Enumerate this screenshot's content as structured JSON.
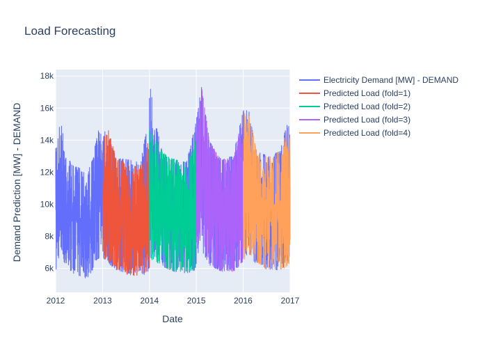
{
  "chart_data": {
    "type": "line",
    "title": "Load Forecasting",
    "xlabel": "Date",
    "ylabel": "Demand Prediction [MW] - DEMAND",
    "xlim": [
      "2012-01-01",
      "2017-01-01"
    ],
    "ylim": [
      4500,
      18400
    ],
    "x_ticks": [
      "2012",
      "2013",
      "2014",
      "2015",
      "2016",
      "2017"
    ],
    "y_ticks": [
      {
        "value": 6000,
        "label": "6k"
      },
      {
        "value": 8000,
        "label": "8k"
      },
      {
        "value": 10000,
        "label": "10k"
      },
      {
        "value": 12000,
        "label": "12k"
      },
      {
        "value": 14000,
        "label": "14k"
      },
      {
        "value": 16000,
        "label": "16k"
      },
      {
        "value": 18000,
        "label": "18k"
      }
    ],
    "grid": true,
    "legend_position": "right",
    "plot_background": "#e5ecf6",
    "series": [
      {
        "name": "Electricity Demand [MW] - DEMAND",
        "color": "#636efa",
        "start": "2012-01-01",
        "end": "2017-01-01",
        "envelope": {
          "dates": [
            "2012-01-01",
            "2012-01-20",
            "2012-02-15",
            "2012-03-15",
            "2012-04-15",
            "2012-05-15",
            "2012-06-15",
            "2012-07-15",
            "2012-08-15",
            "2012-09-15",
            "2012-10-15",
            "2012-11-15",
            "2012-12-15",
            "2013-01-15",
            "2013-02-15",
            "2013-04-15",
            "2013-07-15",
            "2013-10-15",
            "2013-12-15",
            "2014-01-10",
            "2014-01-25",
            "2014-02-15",
            "2014-04-15",
            "2014-07-15",
            "2014-10-15",
            "2014-12-15",
            "2015-01-15",
            "2015-02-10",
            "2015-02-20",
            "2015-04-15",
            "2015-07-15",
            "2015-10-15",
            "2015-12-15",
            "2016-01-20",
            "2016-02-15",
            "2016-04-15",
            "2016-07-15",
            "2016-10-15",
            "2016-12-15",
            "2017-01-01"
          ],
          "max": [
            13500,
            14800,
            15000,
            13500,
            12800,
            12400,
            12300,
            12300,
            12100,
            12200,
            12800,
            14200,
            15000,
            14800,
            14300,
            12900,
            12800,
            12600,
            14800,
            17700,
            17000,
            15200,
            13100,
            12800,
            12600,
            14600,
            16000,
            17300,
            16800,
            13900,
            12800,
            13000,
            15300,
            16300,
            15800,
            13300,
            13000,
            13300,
            15300,
            14200
          ],
          "min": [
            5500,
            6600,
            6800,
            6200,
            5900,
            5700,
            5600,
            5500,
            5300,
            5500,
            5900,
            6500,
            6700,
            6600,
            6300,
            5900,
            5700,
            5600,
            5600,
            6300,
            6900,
            6700,
            6100,
            5800,
            5700,
            5800,
            6500,
            7500,
            7000,
            6200,
            5800,
            5800,
            6300,
            6800,
            6900,
            6200,
            5900,
            5900,
            6300,
            6400
          ]
        }
      },
      {
        "name": "Predicted Load (fold=1)",
        "color": "#ef553b",
        "start": "2013-01-01",
        "end": "2014-01-01",
        "envelope": {
          "dates": [
            "2013-01-01",
            "2013-02-15",
            "2013-04-15",
            "2013-07-15",
            "2013-10-15",
            "2013-12-15",
            "2014-01-01"
          ],
          "max": [
            14000,
            14600,
            13000,
            12500,
            12300,
            13800,
            14000
          ],
          "min": [
            6600,
            6400,
            6000,
            5600,
            5500,
            5700,
            6000
          ]
        }
      },
      {
        "name": "Predicted Load (fold=2)",
        "color": "#00cc96",
        "start": "2014-01-01",
        "end": "2015-01-01",
        "envelope": {
          "dates": [
            "2014-01-01",
            "2014-02-15",
            "2014-04-15",
            "2014-07-15",
            "2014-10-15",
            "2014-12-15",
            "2015-01-01"
          ],
          "max": [
            14700,
            14100,
            13200,
            12800,
            12600,
            13600,
            14400
          ],
          "min": [
            6500,
            6500,
            6000,
            5800,
            5800,
            5900,
            6100
          ]
        }
      },
      {
        "name": "Predicted Load (fold=3)",
        "color": "#ab63fa",
        "start": "2015-01-01",
        "end": "2016-01-01",
        "envelope": {
          "dates": [
            "2015-01-01",
            "2015-02-10",
            "2015-04-15",
            "2015-07-15",
            "2015-10-15",
            "2015-12-15",
            "2016-01-01"
          ],
          "max": [
            15000,
            17400,
            13800,
            12800,
            12900,
            15000,
            15200
          ],
          "min": [
            7000,
            7700,
            6200,
            5800,
            5800,
            6200,
            6500
          ]
        }
      },
      {
        "name": "Predicted Load (fold=4)",
        "color": "#ffa15a",
        "start": "2016-01-01",
        "end": "2017-01-01",
        "envelope": {
          "dates": [
            "2016-01-01",
            "2016-02-15",
            "2016-04-15",
            "2016-07-15",
            "2016-10-15",
            "2016-12-15",
            "2017-01-01"
          ],
          "max": [
            15700,
            15600,
            13300,
            12900,
            13300,
            14800,
            14000
          ],
          "min": [
            6400,
            6900,
            6200,
            5900,
            5900,
            6100,
            6300
          ]
        }
      }
    ]
  }
}
